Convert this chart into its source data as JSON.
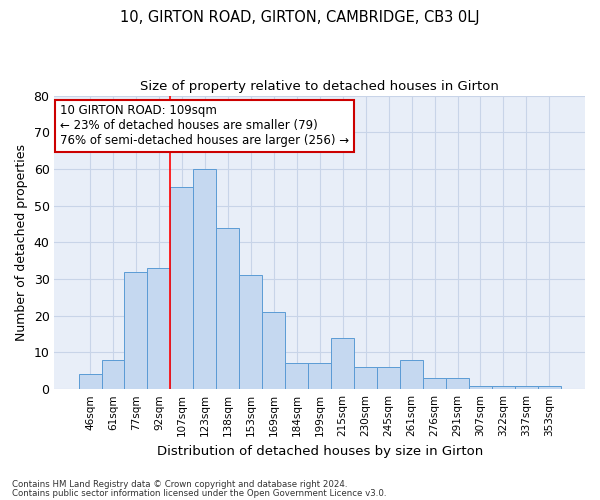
{
  "title_line1": "10, GIRTON ROAD, GIRTON, CAMBRIDGE, CB3 0LJ",
  "title_line2": "Size of property relative to detached houses in Girton",
  "xlabel": "Distribution of detached houses by size in Girton",
  "ylabel": "Number of detached properties",
  "categories": [
    "46sqm",
    "61sqm",
    "77sqm",
    "92sqm",
    "107sqm",
    "123sqm",
    "138sqm",
    "153sqm",
    "169sqm",
    "184sqm",
    "199sqm",
    "215sqm",
    "230sqm",
    "245sqm",
    "261sqm",
    "276sqm",
    "291sqm",
    "307sqm",
    "322sqm",
    "337sqm",
    "353sqm"
  ],
  "values": [
    4,
    8,
    32,
    33,
    55,
    60,
    44,
    31,
    21,
    7,
    7,
    14,
    6,
    6,
    8,
    3,
    3,
    1,
    1,
    1,
    1
  ],
  "bar_color": "#c5d8f0",
  "bar_edge_color": "#5b9bd5",
  "grid_color": "#c8d4e8",
  "bg_color": "#e8eef8",
  "red_line_index": 4,
  "annotation_line1": "10 GIRTON ROAD: 109sqm",
  "annotation_line2": "← 23% of detached houses are smaller (79)",
  "annotation_line3": "76% of semi-detached houses are larger (256) →",
  "annotation_box_color": "#ffffff",
  "annotation_box_edge": "#cc0000",
  "footer_line1": "Contains HM Land Registry data © Crown copyright and database right 2024.",
  "footer_line2": "Contains public sector information licensed under the Open Government Licence v3.0.",
  "ylim": [
    0,
    80
  ],
  "yticks": [
    0,
    10,
    20,
    30,
    40,
    50,
    60,
    70,
    80
  ]
}
